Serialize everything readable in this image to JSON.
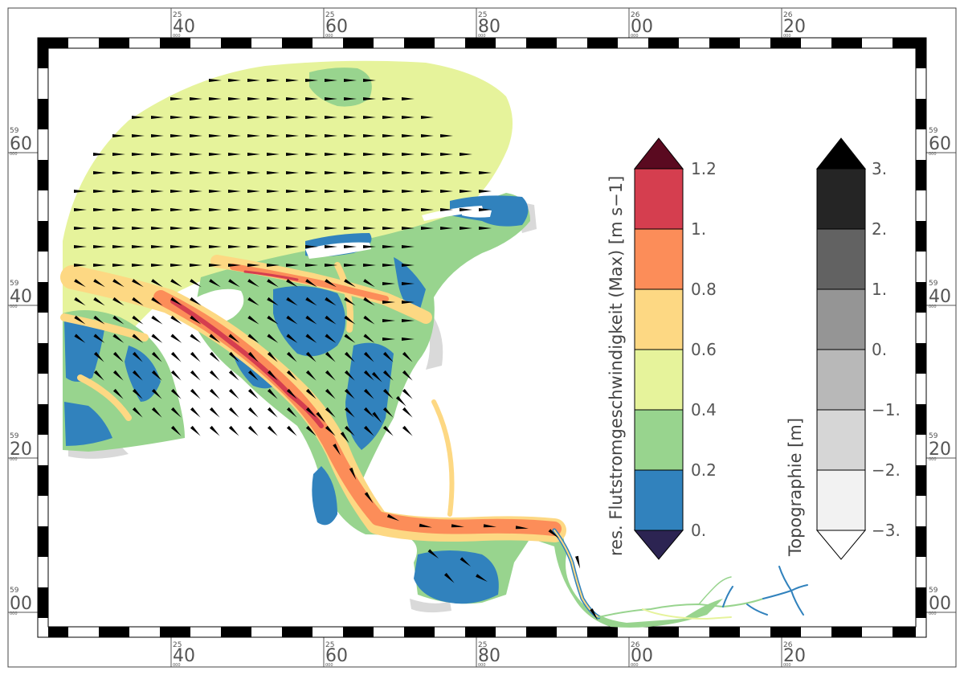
{
  "map": {
    "lon_ticks": [
      {
        "sup": "25",
        "main": "40",
        "sub": "000"
      },
      {
        "sup": "25",
        "main": "60",
        "sub": "000"
      },
      {
        "sup": "25",
        "main": "80",
        "sub": "000"
      },
      {
        "sup": "26",
        "main": "00",
        "sub": "000"
      },
      {
        "sup": "26",
        "main": "20",
        "sub": "000"
      }
    ],
    "lat_ticks": [
      {
        "sup": "59",
        "main": "60",
        "sub": "000"
      },
      {
        "sup": "59",
        "main": "40",
        "sub": "000"
      },
      {
        "sup": "59",
        "main": "20",
        "sub": "000"
      },
      {
        "sup": "59",
        "main": "00",
        "sub": "000"
      }
    ]
  },
  "velocity_legend": {
    "title": "res. Flutstromgeschwindigkeit (Max) [m s−1]",
    "labels": [
      "0.",
      "0.2",
      "0.4",
      "0.6",
      "0.8",
      "1.",
      "1.2"
    ],
    "colors": [
      "#2c2452",
      "#3182bd",
      "#98d48e",
      "#e6f39b",
      "#fdd883",
      "#fc8d59",
      "#d53e4f",
      "#5a0a20"
    ]
  },
  "topo_legend": {
    "title": "Topographie [m]",
    "labels": [
      "−3.",
      "−2.",
      "−1.",
      "0.",
      "1.",
      "2.",
      "3."
    ],
    "colors": [
      "#ffffff",
      "#f2f2f2",
      "#d6d6d6",
      "#b8b8b8",
      "#959595",
      "#626262",
      "#252525",
      "#000000"
    ]
  }
}
